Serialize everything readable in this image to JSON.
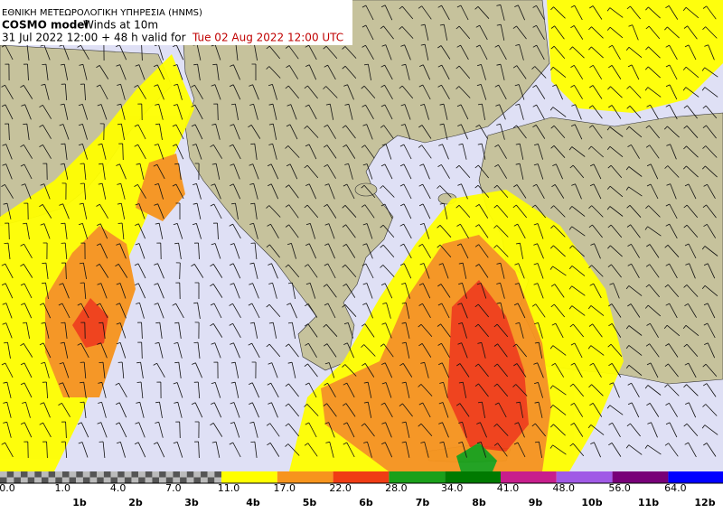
{
  "header": {
    "agency": "ΕΘΝΙΚΗ ΜΕΤΕΩΡΟΛΟΓΙΚΗ ΥΠΗΡΕΣΙΑ (HNMS)",
    "model": "COSMO model",
    "field": "Winds at 10m",
    "run": "31 Jul 2022 12:00 + 48 h valid for",
    "valid": "Tue 02 Aug 2022 12:00 UTC"
  },
  "colorbar": {
    "labels": [
      "0.0",
      "1.0",
      "4.0",
      "7.0",
      "11.0",
      "17.0",
      "22.0",
      "28.0",
      "34.0",
      "41.0",
      "48.0",
      "56.0",
      "64.0"
    ],
    "colors": [
      "#ffff00",
      "#f7941d",
      "#f03c14",
      "#1aa01a",
      "#007a00",
      "#c81e8c",
      "#a05ae6",
      "#780078",
      "#0000ff"
    ],
    "beaufort": [
      "1b",
      "2b",
      "3b",
      "4b",
      "5b",
      "6b",
      "7b",
      "8b",
      "9b",
      "10b",
      "11b",
      "12b"
    ]
  }
}
